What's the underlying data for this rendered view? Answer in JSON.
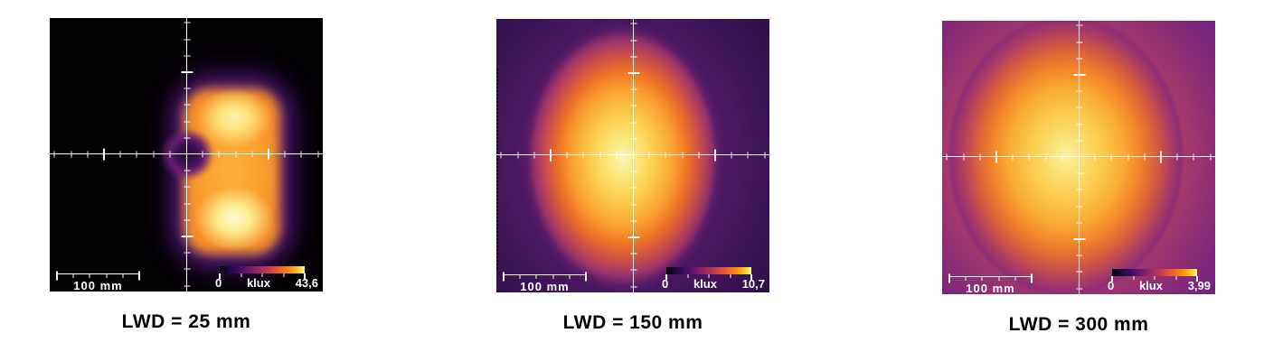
{
  "panels": [
    {
      "id": "lwd-25",
      "caption": "LWD = 25 mm",
      "scale_bar_label": "100 mm",
      "colorbar": {
        "min": "0",
        "unit": "klux",
        "max": "43,6"
      }
    },
    {
      "id": "lwd-150",
      "caption": "LWD = 150 mm",
      "scale_bar_label": "100 mm",
      "colorbar": {
        "min": "0",
        "unit": "klux",
        "max": "10,7"
      }
    },
    {
      "id": "lwd-300",
      "caption": "LWD = 300 mm",
      "scale_bar_label": "100 mm",
      "colorbar": {
        "min": "0",
        "unit": "klux",
        "max": "3,99"
      }
    }
  ],
  "colors": {
    "page_background": "#ffffff",
    "axis": "#ffffff",
    "caption_text": "#000000",
    "colormap": "inferno"
  },
  "chart_data": [
    {
      "type": "heatmap",
      "title": "LWD = 25 mm",
      "lwd_mm": 25,
      "units": "klux",
      "colormap": "inferno",
      "colorbar_range": [
        0,
        43.6
      ],
      "colorbar_labels": [
        "0",
        "klux",
        "43,6"
      ],
      "peak_klux": 43.6,
      "scale_bar_mm": 100,
      "axis": {
        "style": "centered crosshair",
        "minor_tick_mm": 20,
        "major_tick_mm": 100,
        "view_extent_mm_approx": 330
      },
      "distribution": "Two bright rounded-rectangular lobes (~110 x 70 mm each) stacked above and below the crosshair center, joined at the sides, with a dark circular minimum (~60 mm) at the exact center; surrounding field near 0 klux (black) with thin violet fringe."
    },
    {
      "type": "heatmap",
      "title": "LWD = 150 mm",
      "lwd_mm": 150,
      "units": "klux",
      "colormap": "inferno",
      "colorbar_range": [
        0,
        10.7
      ],
      "colorbar_labels": [
        "0",
        "klux",
        "10,7"
      ],
      "peak_klux": 10.7,
      "scale_bar_mm": 100,
      "axis": {
        "style": "centered crosshair",
        "minor_tick_mm": 20,
        "major_tick_mm": 100,
        "view_extent_mm_approx": 330
      },
      "distribution": "Single vertically elongated elliptical hotspot (~150 x 220 mm) slightly left of center, cream-yellow core falling through orange and crimson to a dark violet background."
    },
    {
      "type": "heatmap",
      "title": "LWD = 300 mm",
      "lwd_mm": 300,
      "units": "klux",
      "colormap": "inferno",
      "colorbar_range": [
        0,
        3.99
      ],
      "colorbar_labels": [
        "0",
        "klux",
        "3,99"
      ],
      "peak_klux": 3.99,
      "scale_bar_mm": 100,
      "axis": {
        "style": "centered crosshair",
        "minor_tick_mm": 20,
        "major_tick_mm": 100,
        "view_extent_mm_approx": 330
      },
      "distribution": "Broad nearly circular hotspot (~250 mm) slightly left of center; whole field elevated so the background is bright purple-magenta rather than black."
    }
  ]
}
